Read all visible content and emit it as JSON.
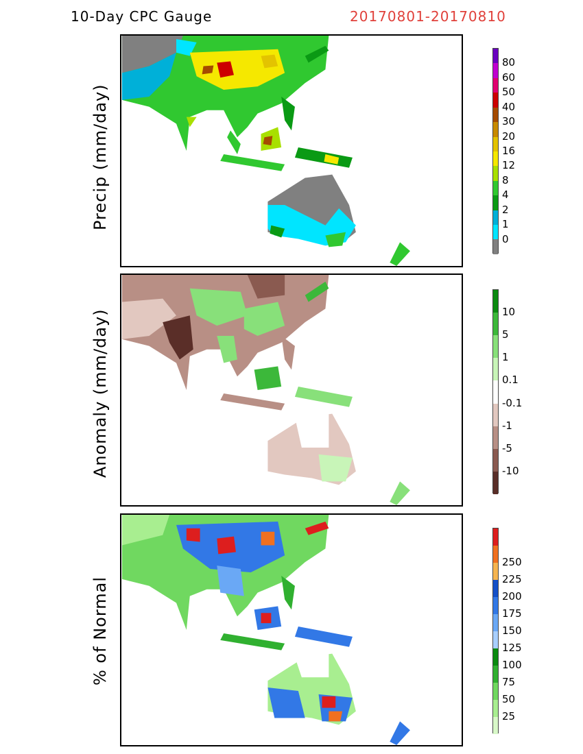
{
  "header": {
    "title": "10-Day CPC Gauge",
    "date_range": "20170801-20170810",
    "date_color": "#e0403a"
  },
  "panels": [
    {
      "ylabel": "Precip (mm/day)",
      "colors": [
        "#808080",
        "#00e5ff",
        "#00b0d8",
        "#0a9a14",
        "#30c830",
        "#a8e000",
        "#f5e800",
        "#e3c300",
        "#c88a00",
        "#a54b00",
        "#cc0000",
        "#e00070",
        "#c000d0",
        "#6a00c0"
      ],
      "tick_labels": [
        "0",
        "1",
        "2",
        "4",
        "8",
        "12",
        "16",
        "20",
        "30",
        "40",
        "50",
        "60",
        "80"
      ]
    },
    {
      "ylabel": "Anomaly (mm/day)",
      "colors": [
        "#5a2e28",
        "#8a5a50",
        "#b88f85",
        "#e2c8c0",
        "#ffffff",
        "#c8f5b8",
        "#88e07a",
        "#3cb83a",
        "#0a8a10"
      ],
      "tick_labels": [
        "-10",
        "-5",
        "-1",
        "-0.1",
        "0.1",
        "1",
        "5",
        "10"
      ]
    },
    {
      "ylabel": "% of Normal",
      "colors": [
        "#d8f8c8",
        "#a8ee90",
        "#70d860",
        "#30b030",
        "#0a8a10",
        "#a8cfff",
        "#6aa8f5",
        "#3278e6",
        "#1450c8",
        "#f5b450",
        "#f07020",
        "#dd1e1e"
      ],
      "tick_labels": [
        "25",
        "50",
        "75",
        "100",
        "125",
        "150",
        "175",
        "200",
        "225",
        "250"
      ]
    }
  ]
}
